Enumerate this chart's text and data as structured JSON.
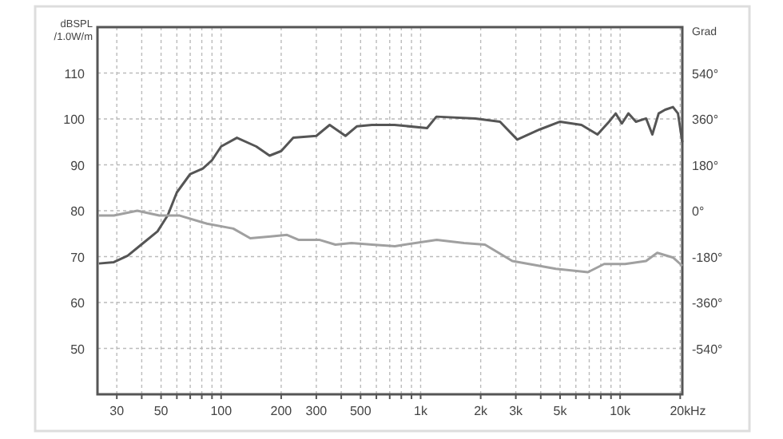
{
  "chart_data": {
    "type": "line",
    "ylabel": "dBSPL /1.0W/m",
    "y2label": "Grad",
    "log": "x",
    "xlabel": "Hz",
    "grid": true,
    "line_style": "solid",
    "xlim": [
      24,
      20500
    ],
    "ylim": [
      40,
      120
    ],
    "y2lim": [
      -720,
      720
    ],
    "xticks": [
      {
        "value": 30,
        "label": "30"
      },
      {
        "value": 40,
        "label": null
      },
      {
        "value": 50,
        "label": "50"
      },
      {
        "value": 60,
        "label": null
      },
      {
        "value": 70,
        "label": null
      },
      {
        "value": 80,
        "label": null
      },
      {
        "value": 90,
        "label": null
      },
      {
        "value": 100,
        "label": "100"
      },
      {
        "value": 200,
        "label": "200"
      },
      {
        "value": 300,
        "label": "300"
      },
      {
        "value": 400,
        "label": null
      },
      {
        "value": 500,
        "label": "500"
      },
      {
        "value": 600,
        "label": null
      },
      {
        "value": 700,
        "label": null
      },
      {
        "value": 800,
        "label": null
      },
      {
        "value": 900,
        "label": null
      },
      {
        "value": 1000,
        "label": "1k"
      },
      {
        "value": 2000,
        "label": "2k"
      },
      {
        "value": 3000,
        "label": "3k"
      },
      {
        "value": 4000,
        "label": null
      },
      {
        "value": 5000,
        "label": "5k"
      },
      {
        "value": 6000,
        "label": null
      },
      {
        "value": 7000,
        "label": null
      },
      {
        "value": 8000,
        "label": null
      },
      {
        "value": 9000,
        "label": null
      },
      {
        "value": 10000,
        "label": "10k"
      },
      {
        "value": 20000,
        "label": "20k"
      }
    ],
    "yticks": [
      50,
      60,
      70,
      80,
      90,
      100,
      110
    ],
    "y2ticks": [
      {
        "value": -540,
        "label": "-540°"
      },
      {
        "value": -360,
        "label": "-360°"
      },
      {
        "value": -180,
        "label": "-180°"
      },
      {
        "value": 0,
        "label": "0°"
      },
      {
        "value": 180,
        "label": "180°"
      },
      {
        "value": 360,
        "label": "360°"
      },
      {
        "value": 540,
        "label": "540°"
      }
    ],
    "series": [
      {
        "color": "#555555",
        "x": [
          24.4,
          29,
          34,
          40,
          48,
          54,
          60,
          70,
          81,
          90,
          100,
          120,
          150,
          175,
          200,
          230,
          300,
          350,
          420,
          480,
          570,
          740,
          1077,
          1200,
          1880,
          2500,
          3050,
          3950,
          5000,
          6400,
          7700,
          8800,
          9500,
          10200,
          11000,
          12000,
          13500,
          14500,
          15600,
          16800,
          18400,
          19500,
          20500
        ],
        "values": [
          68.5,
          68.8,
          70.2,
          72.7,
          75.5,
          79,
          84,
          88,
          89.2,
          91,
          94,
          95.9,
          94,
          92,
          93,
          95.9,
          96.3,
          98.7,
          96.3,
          98.4,
          98.7,
          98.7,
          98,
          100.5,
          100.1,
          99.4,
          95.5,
          97.7,
          99.4,
          98.7,
          96.6,
          99.4,
          101.2,
          99,
          101.2,
          99.4,
          100.1,
          96.6,
          101.2,
          102,
          102.6,
          101.2,
          94.9
        ]
      },
      {
        "color": "#a0a0a0",
        "axis": "y2",
        "x": [
          24.3,
          29,
          38,
          49,
          62,
          85,
          115,
          140,
          177,
          214,
          244,
          310,
          374,
          450,
          573,
          743,
          831,
          1204,
          1651,
          2101,
          2881,
          4758,
          6895,
          8316,
          10584,
          13480,
          15350,
          18460,
          20500
        ],
        "values": [
          -19,
          -19,
          0,
          -19,
          -19,
          -51,
          -70,
          -108,
          -101,
          -95,
          -114,
          -114,
          -133,
          -127,
          -133,
          -139,
          -133,
          -114,
          -127,
          -133,
          -197,
          -228,
          -241,
          -209,
          -209,
          -197,
          -165,
          -184,
          -216
        ]
      }
    ]
  }
}
